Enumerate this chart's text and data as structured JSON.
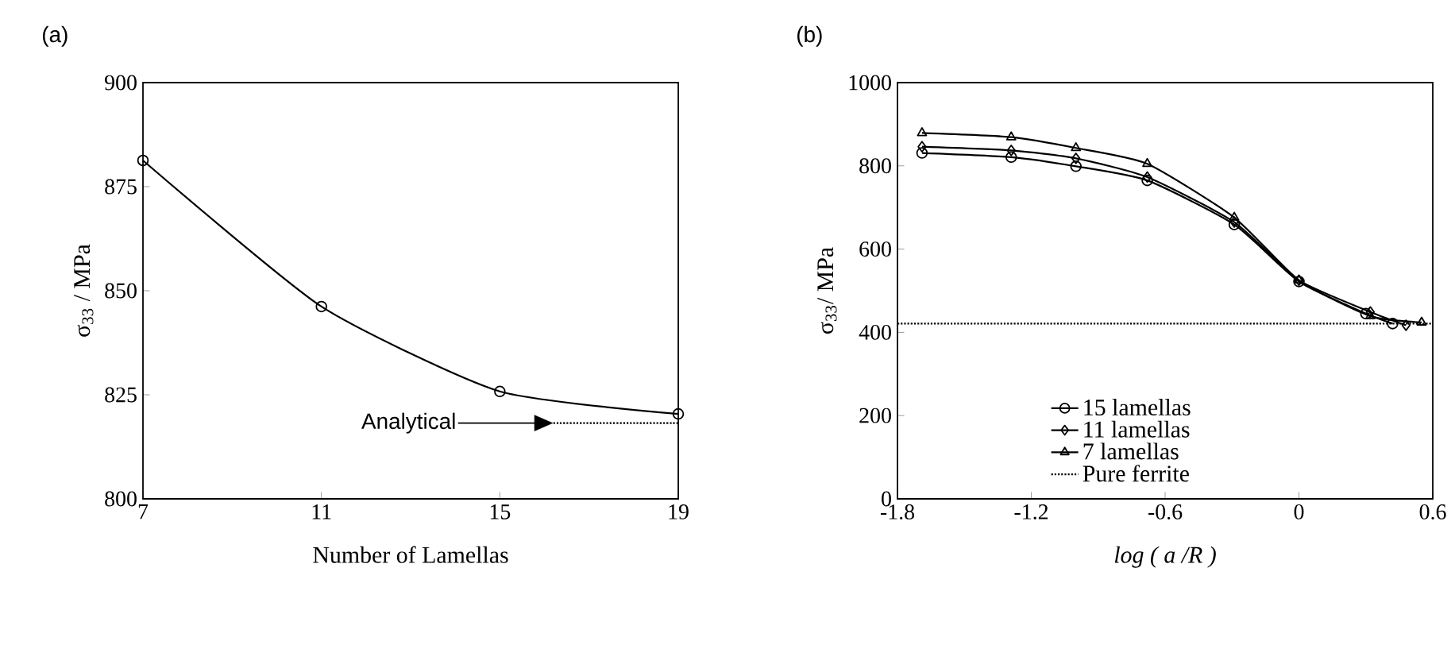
{
  "chart_data": [
    {
      "type": "line",
      "title": "(a)",
      "xlabel": "Number of Lamellas",
      "ylabel": "σ$_{33}$ / MPa",
      "x": [
        7,
        11,
        15,
        19
      ],
      "xlim": [
        7,
        19
      ],
      "xticks": [
        7,
        11,
        15,
        19
      ],
      "ylim": [
        800,
        900
      ],
      "yticks": [
        800,
        825,
        850,
        875,
        900
      ],
      "series": [
        {
          "color": "#000000",
          "values": [
            881.3,
            846.2,
            825.8,
            820.4
          ],
          "marker": "circle",
          "line_style": "solid"
        },
        {
          "color": "#000000",
          "x": [
            16.2,
            19
          ],
          "values": [
            818.2,
            818.2
          ],
          "marker": "none",
          "line_style": "dotted"
        }
      ],
      "annotations": [
        "Analytical"
      ],
      "grid": false,
      "legend": false
    },
    {
      "type": "line",
      "title": "(b)",
      "xlabel": "log ( a /R )",
      "ylabel": "σ$_{33}$/ MPa",
      "xlim": [
        -1.8,
        0.6
      ],
      "xticks": [
        -1.8,
        -1.2,
        -0.6,
        0,
        0.6
      ],
      "ylim": [
        0,
        1000
      ],
      "yticks": [
        0,
        200,
        400,
        600,
        800,
        1000
      ],
      "series": [
        {
          "name": "15 lamellas",
          "color": "#000000",
          "marker": "circle",
          "line_style": "solid",
          "x": [
            -1.69,
            -1.29,
            -1.0,
            -0.68,
            -0.29,
            0.0,
            0.3,
            0.42
          ],
          "values": [
            831,
            821,
            799,
            765,
            659,
            522,
            445,
            421
          ]
        },
        {
          "name": "11 lamellas",
          "color": "#000000",
          "marker": "diamond",
          "line_style": "solid",
          "x": [
            -1.69,
            -1.29,
            -1.0,
            -0.68,
            -0.29,
            0.0,
            0.32,
            0.48
          ],
          "values": [
            846,
            837,
            818,
            773,
            665,
            525,
            449,
            417
          ]
        },
        {
          "name": "7 lamellas",
          "color": "#000000",
          "marker": "triangle",
          "line_style": "solid",
          "x": [
            -1.69,
            -1.29,
            -1.0,
            -0.68,
            -0.29,
            0.0,
            0.32,
            0.55
          ],
          "values": [
            879,
            869,
            843,
            805,
            676,
            525,
            439,
            424
          ]
        }
      ],
      "ref_lines": [
        {
          "axis": "y",
          "value": 421,
          "label": "Pure ferrite",
          "line_style": "dotted",
          "color": "#000000"
        }
      ],
      "grid": false,
      "legend": "bottom"
    }
  ]
}
